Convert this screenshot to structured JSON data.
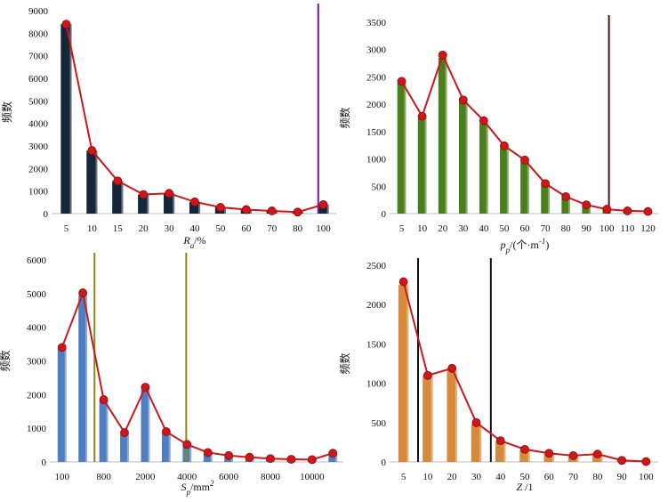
{
  "chart_data": [
    {
      "type": "bar",
      "id": "ra",
      "title": "",
      "xlabel": "Ra/%",
      "xlabel_main": "R",
      "xlabel_sub": "a",
      "xlabel_unit": "/%",
      "ylabel": "频数",
      "categories": [
        "5",
        "10",
        "15",
        "20",
        "30",
        "40",
        "50",
        "60",
        "70",
        "80",
        "100"
      ],
      "values": [
        8400,
        2800,
        1450,
        850,
        900,
        520,
        280,
        180,
        120,
        70,
        400
      ],
      "line_values": [
        8400,
        2800,
        1450,
        850,
        900,
        520,
        280,
        180,
        120,
        70,
        400
      ],
      "ylim": [
        0,
        9000
      ],
      "yticks": [
        0,
        1000,
        2000,
        3000,
        4000,
        5000,
        6000,
        7000,
        8000,
        9000
      ],
      "vlines": [
        10.3,
        40.3
      ],
      "bar_color": "#16263a",
      "line_color": "#d0161a",
      "vline_color": "#6a1b9a"
    },
    {
      "type": "bar",
      "id": "pp",
      "title": "",
      "xlabel": "pp/(个·m-1)",
      "xlabel_main": "p",
      "xlabel_sub": "p",
      "xlabel_unit": "/(个·m",
      "xlabel_sup": "-1",
      "xlabel_tail": ")",
      "ylabel": "频数",
      "categories": [
        "5",
        "10",
        "20",
        "30",
        "40",
        "50",
        "60",
        "70",
        "80",
        "90",
        "100",
        "110",
        "120"
      ],
      "values": [
        2400,
        1750,
        2850,
        2050,
        1650,
        1200,
        950,
        520,
        280,
        140,
        70,
        40,
        30
      ],
      "line_values": [
        2420,
        1780,
        2900,
        2080,
        1700,
        1240,
        980,
        550,
        310,
        160,
        80,
        50,
        40
      ],
      "ylim": [
        0,
        3500
      ],
      "yticks": [
        0,
        500,
        1000,
        1500,
        2000,
        2500,
        3000,
        3500
      ],
      "vlines": [
        10.6,
        60.1
      ],
      "bar_color": "#4a7f1c",
      "line_color": "#d0161a",
      "vline_color": "#5a1010"
    },
    {
      "type": "bar",
      "id": "sp",
      "title": "",
      "xlabel": "Sp/mm2",
      "xlabel_main": "S",
      "xlabel_sub": "p",
      "xlabel_unit": "/mm",
      "xlabel_sup": "2",
      "xlabel_tail": "",
      "ylabel": "频数",
      "categories": [
        "100",
        "",
        "800",
        "",
        "2000",
        "",
        "4000",
        "",
        "6000",
        "",
        "8000",
        "",
        "10000",
        ""
      ],
      "values": [
        3350,
        4950,
        1800,
        830,
        2150,
        850,
        480,
        250,
        160,
        110,
        70,
        50,
        40,
        220
      ],
      "line_values": [
        3400,
        5020,
        1850,
        870,
        2220,
        900,
        520,
        280,
        190,
        140,
        100,
        80,
        70,
        260
      ],
      "ylim": [
        0,
        6000
      ],
      "yticks": [
        0,
        1000,
        2000,
        3000,
        4000,
        5000,
        6000
      ],
      "vlines": [
        2.06,
        6.46
      ],
      "bar_color": "#4f7fc0",
      "line_color": "#d0161a",
      "vline_color": "#8a8a10"
    },
    {
      "type": "bar",
      "id": "z",
      "title": "",
      "xlabel": "Z /1",
      "xlabel_main": "Z",
      "xlabel_sub": "",
      "xlabel_unit": " /1",
      "ylabel": "频数",
      "categories": [
        "5",
        "10",
        "20",
        "30",
        "40",
        "50",
        "60",
        "70",
        "80",
        "90",
        "100"
      ],
      "values": [
        2250,
        1100,
        1170,
        480,
        260,
        150,
        100,
        70,
        90,
        15,
        0
      ],
      "line_values": [
        2290,
        1100,
        1190,
        500,
        270,
        160,
        110,
        80,
        100,
        20,
        5
      ],
      "ylim": [
        0,
        2500
      ],
      "yticks": [
        0,
        500,
        1000,
        1500,
        2000,
        2500
      ],
      "vlines": [
        1.1,
        4.1
      ],
      "bar_color": "#d88a3c",
      "line_color": "#d0161a",
      "vline_color": "#111111"
    }
  ]
}
